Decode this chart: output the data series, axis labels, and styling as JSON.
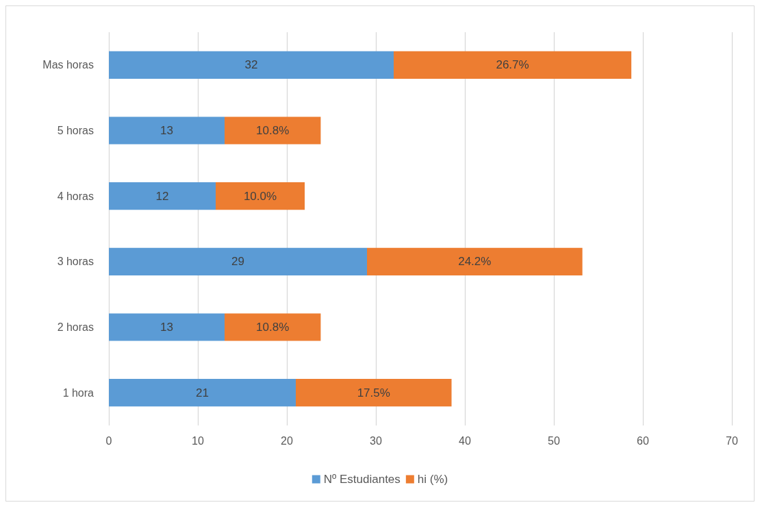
{
  "chart_data": {
    "type": "bar",
    "orientation": "horizontal",
    "stacked": true,
    "categories": [
      "Mas horas",
      "5 horas",
      "4 horas",
      "3 horas",
      "2 horas",
      "1 hora"
    ],
    "series": [
      {
        "name": "Nº Estudiantes",
        "color": "#5b9bd5",
        "values": [
          32,
          13,
          12,
          29,
          13,
          21
        ],
        "value_labels": [
          "32",
          "13",
          "12",
          "29",
          "13",
          "21"
        ]
      },
      {
        "name": "hi (%)",
        "color": "#ed7d31",
        "values": [
          26.7,
          10.8,
          10.0,
          24.2,
          10.8,
          17.5
        ],
        "value_labels": [
          "26.7%",
          "10.8%",
          "10.0%",
          "24.2%",
          "10.8%",
          "17.5%"
        ]
      }
    ],
    "xlim": [
      0,
      70
    ],
    "xticks": [
      0,
      10,
      20,
      30,
      40,
      50,
      60,
      70
    ],
    "grid": "x",
    "legend": "bottom"
  }
}
